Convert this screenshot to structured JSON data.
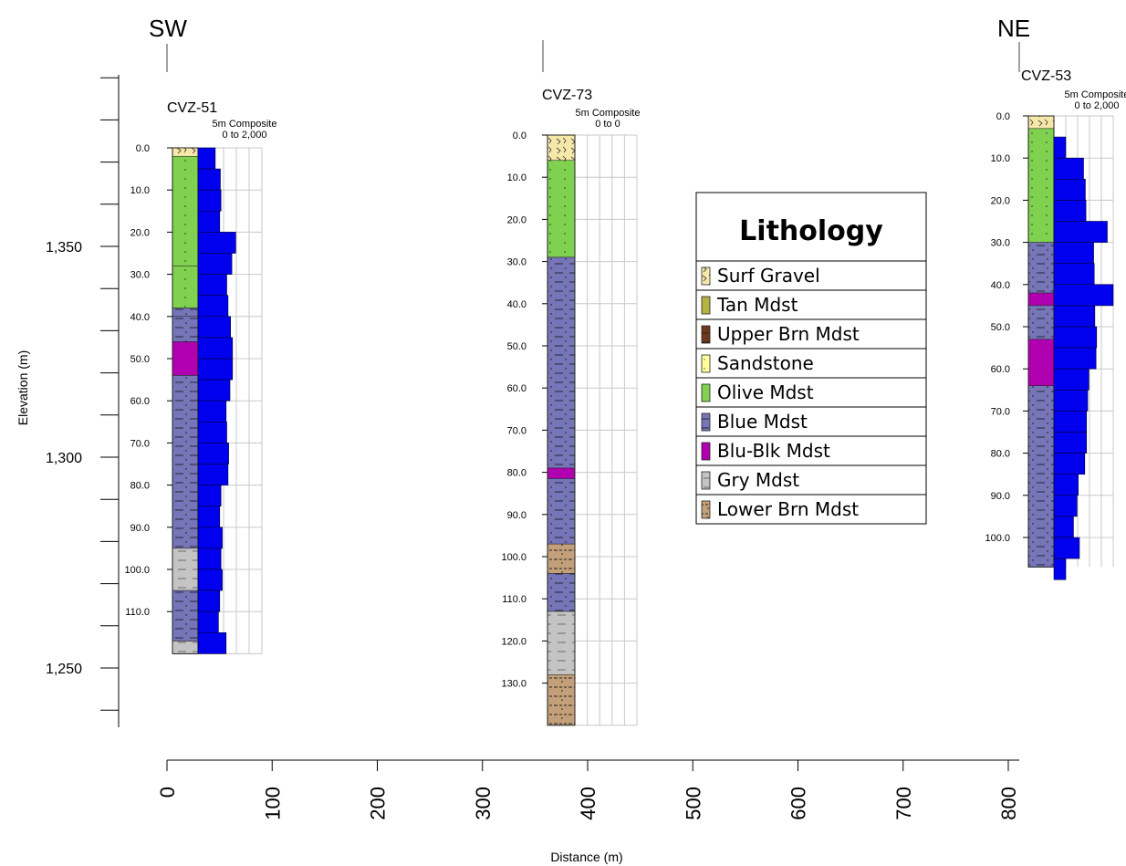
{
  "chart_data": {
    "type": "cross-section",
    "directions": {
      "left": "SW",
      "right": "NE"
    },
    "ylabel": "Elevation (m)",
    "xlabel": "Distance (m)",
    "elevation_ticks": [
      "1,350",
      "1,300",
      "1,250"
    ],
    "distance_ticks": [
      "0",
      "100",
      "200",
      "300",
      "400",
      "500",
      "600",
      "700",
      "800"
    ],
    "legend": {
      "title": "Lithology",
      "items": [
        {
          "key": "surf",
          "label": "Surf Gravel",
          "color": "#f6e8a8"
        },
        {
          "key": "tan",
          "label": "Tan Mdst",
          "color": "#b3b242"
        },
        {
          "key": "upperbrn",
          "label": "Upper Brn Mdst",
          "color": "#6e3a1e"
        },
        {
          "key": "sand",
          "label": "Sandstone",
          "color": "#ffff99"
        },
        {
          "key": "olive",
          "label": "Olive Mdst",
          "color": "#7fd14f"
        },
        {
          "key": "blue",
          "label": "Blue Mdst",
          "color": "#7575b8"
        },
        {
          "key": "blublk",
          "label": "Blu-Blk Mdst",
          "color": "#b000b0"
        },
        {
          "key": "gry",
          "label": "Gry Mdst",
          "color": "#c4c4c4"
        },
        {
          "key": "lowerbrn",
          "label": "Lower Brn Mdst",
          "color": "#c4a07a"
        }
      ]
    },
    "bar_color": "#0000ee",
    "wells": [
      {
        "name": "CVZ-51",
        "track_label": "5m Composite",
        "range_label": "0 to 2,000",
        "distance": 10,
        "depth_ticks": [
          "0.0",
          "10.0",
          "20.0",
          "30.0",
          "40.0",
          "50.0",
          "60.0",
          "70.0",
          "80.0",
          "90.0",
          "100.0",
          "110.0"
        ],
        "lithology": [
          {
            "from": 0,
            "to": 2,
            "unit": "surf"
          },
          {
            "from": 2,
            "to": 28,
            "unit": "olive"
          },
          {
            "from": 28,
            "to": 38,
            "unit": "olive"
          },
          {
            "from": 38,
            "to": 40,
            "unit": "blue"
          },
          {
            "from": 40,
            "to": 46,
            "unit": "blue"
          },
          {
            "from": 46,
            "to": 54,
            "unit": "blublk"
          },
          {
            "from": 54,
            "to": 95,
            "unit": "blue"
          },
          {
            "from": 95,
            "to": 105,
            "unit": "gry"
          },
          {
            "from": 105,
            "to": 117,
            "unit": "blue"
          },
          {
            "from": 117,
            "to": 120,
            "unit": "gry"
          }
        ],
        "composite": [
          {
            "from": 0,
            "to": 5,
            "value": 540
          },
          {
            "from": 5,
            "to": 10,
            "value": 700
          },
          {
            "from": 10,
            "to": 15,
            "value": 720
          },
          {
            "from": 15,
            "to": 20,
            "value": 680
          },
          {
            "from": 20,
            "to": 25,
            "value": 1180
          },
          {
            "from": 25,
            "to": 30,
            "value": 1060
          },
          {
            "from": 30,
            "to": 35,
            "value": 900
          },
          {
            "from": 35,
            "to": 40,
            "value": 940
          },
          {
            "from": 40,
            "to": 45,
            "value": 1020
          },
          {
            "from": 45,
            "to": 50,
            "value": 1080
          },
          {
            "from": 50,
            "to": 55,
            "value": 1080
          },
          {
            "from": 55,
            "to": 60,
            "value": 1000
          },
          {
            "from": 60,
            "to": 65,
            "value": 880
          },
          {
            "from": 65,
            "to": 70,
            "value": 900
          },
          {
            "from": 70,
            "to": 75,
            "value": 960
          },
          {
            "from": 75,
            "to": 80,
            "value": 940
          },
          {
            "from": 80,
            "to": 85,
            "value": 720
          },
          {
            "from": 85,
            "to": 90,
            "value": 680
          },
          {
            "from": 90,
            "to": 95,
            "value": 760
          },
          {
            "from": 95,
            "to": 100,
            "value": 720
          },
          {
            "from": 100,
            "to": 105,
            "value": 760
          },
          {
            "from": 105,
            "to": 110,
            "value": 680
          },
          {
            "from": 110,
            "to": 115,
            "value": 640
          },
          {
            "from": 115,
            "to": 120,
            "value": 880
          }
        ]
      },
      {
        "name": "CVZ-73",
        "track_label": "5m Composite",
        "range_label": "0 to 0",
        "distance": 375,
        "depth_ticks": [
          "0.0",
          "10.0",
          "20.0",
          "30.0",
          "40.0",
          "50.0",
          "60.0",
          "70.0",
          "80.0",
          "90.0",
          "100.0",
          "110.0",
          "120.0",
          "130.0"
        ],
        "lithology": [
          {
            "from": 0,
            "to": 6,
            "unit": "surf"
          },
          {
            "from": 6,
            "to": 29,
            "unit": "olive"
          },
          {
            "from": 29,
            "to": 79,
            "unit": "blue"
          },
          {
            "from": 79,
            "to": 81.5,
            "unit": "blublk"
          },
          {
            "from": 81.5,
            "to": 97,
            "unit": "blue"
          },
          {
            "from": 97,
            "to": 104,
            "unit": "lowerbrn"
          },
          {
            "from": 104,
            "to": 113,
            "unit": "blue"
          },
          {
            "from": 113,
            "to": 128,
            "unit": "gry"
          },
          {
            "from": 128,
            "to": 140,
            "unit": "lowerbrn"
          }
        ],
        "composite": []
      },
      {
        "name": "CVZ-53",
        "track_label": "5m Composite",
        "range_label": "0 to 2,000",
        "distance": 840,
        "depth_ticks": [
          "0.0",
          "10.0",
          "20.0",
          "30.0",
          "40.0",
          "50.0",
          "60.0",
          "70.0",
          "80.0",
          "90.0",
          "100.0"
        ],
        "lithology": [
          {
            "from": 0,
            "to": 3,
            "unit": "surf"
          },
          {
            "from": 3,
            "to": 30,
            "unit": "olive"
          },
          {
            "from": 30,
            "to": 42,
            "unit": "blue"
          },
          {
            "from": 42,
            "to": 45,
            "unit": "blublk"
          },
          {
            "from": 45,
            "to": 53,
            "unit": "blue"
          },
          {
            "from": 53,
            "to": 64,
            "unit": "blublk"
          },
          {
            "from": 64,
            "to": 107,
            "unit": "blue"
          }
        ],
        "composite": [
          {
            "from": 0,
            "to": 5,
            "value": 0
          },
          {
            "from": 5,
            "to": 10,
            "value": 400
          },
          {
            "from": 10,
            "to": 15,
            "value": 1000
          },
          {
            "from": 15,
            "to": 20,
            "value": 1060
          },
          {
            "from": 20,
            "to": 25,
            "value": 1080
          },
          {
            "from": 25,
            "to": 30,
            "value": 1800
          },
          {
            "from": 30,
            "to": 35,
            "value": 1340
          },
          {
            "from": 35,
            "to": 40,
            "value": 1360
          },
          {
            "from": 40,
            "to": 45,
            "value": 2000
          },
          {
            "from": 45,
            "to": 50,
            "value": 1380
          },
          {
            "from": 50,
            "to": 55,
            "value": 1440
          },
          {
            "from": 55,
            "to": 60,
            "value": 1420
          },
          {
            "from": 60,
            "to": 65,
            "value": 1180
          },
          {
            "from": 65,
            "to": 70,
            "value": 1140
          },
          {
            "from": 70,
            "to": 75,
            "value": 1100
          },
          {
            "from": 75,
            "to": 80,
            "value": 1100
          },
          {
            "from": 80,
            "to": 85,
            "value": 1040
          },
          {
            "from": 85,
            "to": 90,
            "value": 820
          },
          {
            "from": 90,
            "to": 95,
            "value": 780
          },
          {
            "from": 95,
            "to": 100,
            "value": 660
          },
          {
            "from": 100,
            "to": 105,
            "value": 860
          },
          {
            "from": 105,
            "to": 110,
            "value": 400
          }
        ]
      }
    ]
  }
}
